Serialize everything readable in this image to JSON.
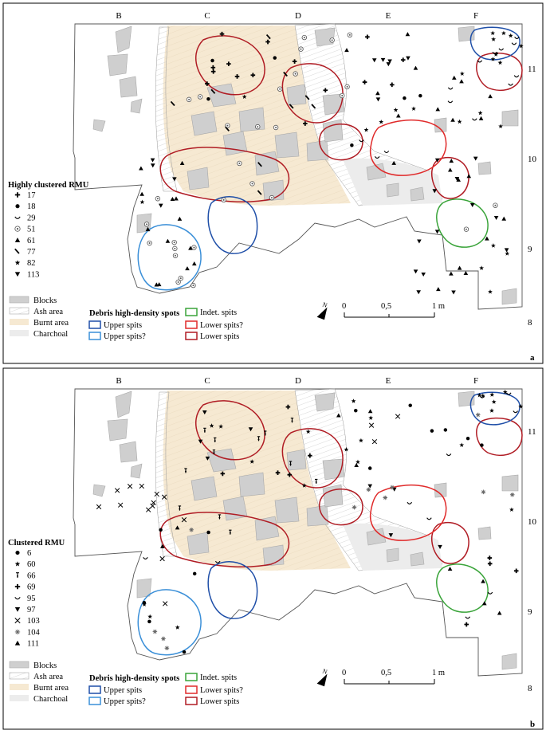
{
  "panels": [
    {
      "id": "a",
      "panel_letter": "a",
      "grid_cols": [
        "B",
        "C",
        "D",
        "E",
        "F"
      ],
      "grid_rows": [
        "11",
        "10",
        "9",
        "8"
      ],
      "legend_title": "Highly clustered RMU",
      "legend_items": [
        {
          "symbol": "cross",
          "label": "17"
        },
        {
          "symbol": "dot",
          "label": "18"
        },
        {
          "symbol": "smile",
          "label": "29"
        },
        {
          "symbol": "target",
          "label": "51"
        },
        {
          "symbol": "triangle",
          "label": "61"
        },
        {
          "symbol": "tick",
          "label": "77"
        },
        {
          "symbol": "star",
          "label": "82"
        },
        {
          "symbol": "tri-down",
          "label": "113"
        }
      ],
      "areas": [
        "Blocks",
        "Ash area",
        "Burnt area",
        "Charchoal"
      ],
      "debris_title": "Debris high-density spots",
      "debris_items": [
        {
          "label": "Upper spits",
          "color": "#1f4fa8"
        },
        {
          "label": "Upper spits?",
          "color": "#3a8fd8"
        },
        {
          "label": "Indet. spits",
          "color": "#3aa43a"
        },
        {
          "label": "Lower spits?",
          "color": "#e02a2a"
        },
        {
          "label": "Lower spits",
          "color": "#b01c24"
        }
      ],
      "scale": {
        "labels": [
          "0",
          "0,5",
          "1 m"
        ],
        "north": "N"
      }
    },
    {
      "id": "b",
      "panel_letter": "b",
      "grid_cols": [
        "B",
        "C",
        "D",
        "E",
        "F"
      ],
      "grid_rows": [
        "11",
        "10",
        "9",
        "8"
      ],
      "legend_title": "Clustered RMU",
      "legend_items": [
        {
          "symbol": "dot",
          "label": "6"
        },
        {
          "symbol": "star",
          "label": "60"
        },
        {
          "symbol": "ibar",
          "label": "66"
        },
        {
          "symbol": "cross",
          "label": "69"
        },
        {
          "symbol": "smile",
          "label": "95"
        },
        {
          "symbol": "tri-down",
          "label": "97"
        },
        {
          "symbol": "x",
          "label": "103"
        },
        {
          "symbol": "asterisk",
          "label": "104"
        },
        {
          "symbol": "triangle",
          "label": "111"
        }
      ],
      "areas": [
        "Blocks",
        "Ash area",
        "Burnt area",
        "Charchoal"
      ],
      "debris_title": "Debris high-density spots",
      "debris_items": [
        {
          "label": "Upper spits",
          "color": "#1f4fa8"
        },
        {
          "label": "Upper spits?",
          "color": "#3a8fd8"
        },
        {
          "label": "Indet. spits",
          "color": "#3aa43a"
        },
        {
          "label": "Lower spits?",
          "color": "#e02a2a"
        },
        {
          "label": "Lower spits",
          "color": "#b01c24"
        }
      ],
      "scale": {
        "labels": [
          "0",
          "0,5",
          "1 m"
        ],
        "north": "N"
      }
    }
  ],
  "colors": {
    "frame": "#000000",
    "block_fill": "#cfcfcf",
    "block_stroke": "#a8a8a8",
    "burnt": "#f6e9d2",
    "ash_hatch": "#c8c8c8",
    "charcoal": "#e9e9e9",
    "grid": "#bdbdbd",
    "upper": "#1f4fa8",
    "upper_q": "#3a8fd8",
    "indet": "#3aa43a",
    "lower_q": "#e02a2a",
    "lower": "#b01c24"
  }
}
